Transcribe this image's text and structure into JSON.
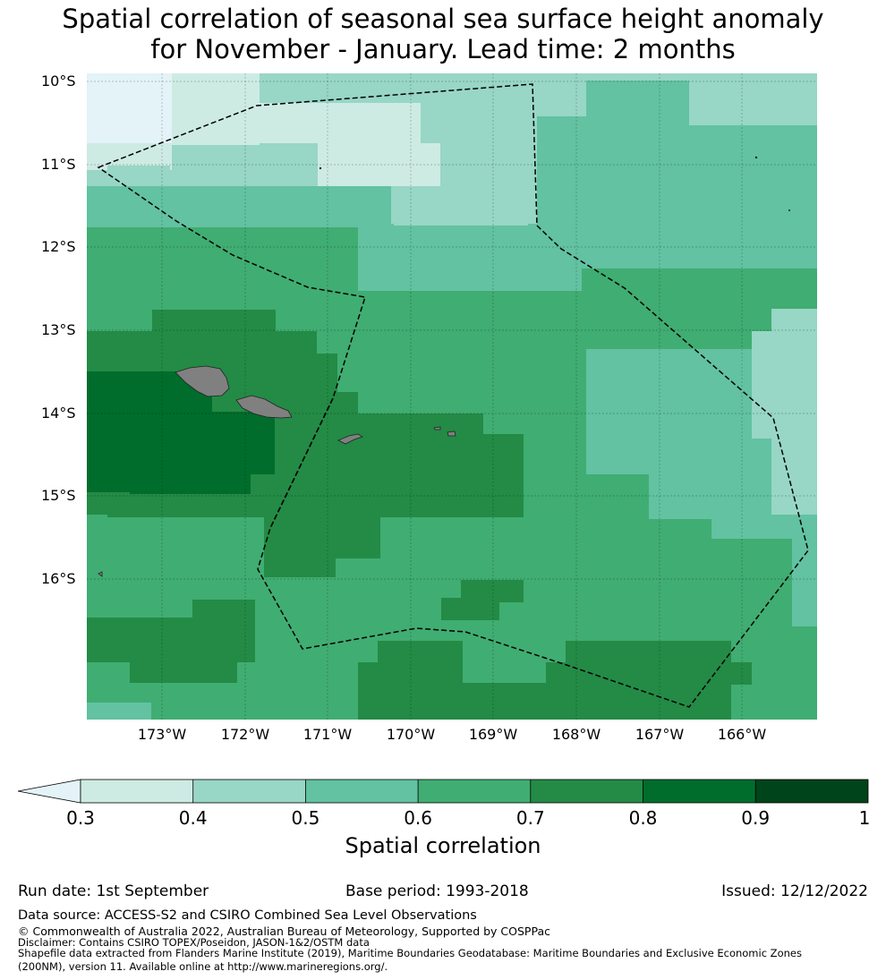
{
  "title": {
    "line1": "Spatial correlation of seasonal sea surface height anomaly",
    "line2": "for November - January. Lead time: 2 months"
  },
  "map": {
    "lat_labels": [
      "10°S",
      "11°S",
      "12°S",
      "13°S",
      "14°S",
      "15°S",
      "16°S"
    ],
    "lon_labels": [
      "173°W",
      "172°W",
      "171°W",
      "170°W",
      "169°W",
      "168°W",
      "167°W",
      "166°W"
    ],
    "region": "Samoa / American Samoa EEZ",
    "colors": {
      "c03": "#cdebe3",
      "c04": "#98d6c5",
      "c05": "#62c2a2",
      "c06": "#40ad72",
      "c07": "#238b45",
      "c08": "#006d2c",
      "c09": "#00441b",
      "under": "#e3f3f8",
      "land": "#808080"
    }
  },
  "colorbar": {
    "ticks": [
      "0.3",
      "0.4",
      "0.5",
      "0.6",
      "0.7",
      "0.8",
      "0.9",
      "1"
    ],
    "label": "Spatial correlation"
  },
  "meta": {
    "run_date": "Run date: 1st September",
    "base_period": "Base period: 1993-2018",
    "issued": "Issued: 12/12/2022"
  },
  "footer": {
    "source": "Data source: ACCESS-S2 and CSIRO Combined Sea Level Observations",
    "copyright": "© Commonwealth of Australia 2022, Australian Bureau of Meteorology, Supported by COSPPac",
    "disclaimer": "Disclaimer: Contains CSIRO TOPEX/Poseidon, JASON-1&2/OSTM data",
    "shapefile1": "Shapefile data extracted from Flanders Marine Institute (2019), Maritime Boundaries Geodatabase: Maritime Boundaries and Exclusive Economic Zones",
    "shapefile2": "(200NM), version 11. Available online at http://www.marineregions.org/."
  }
}
